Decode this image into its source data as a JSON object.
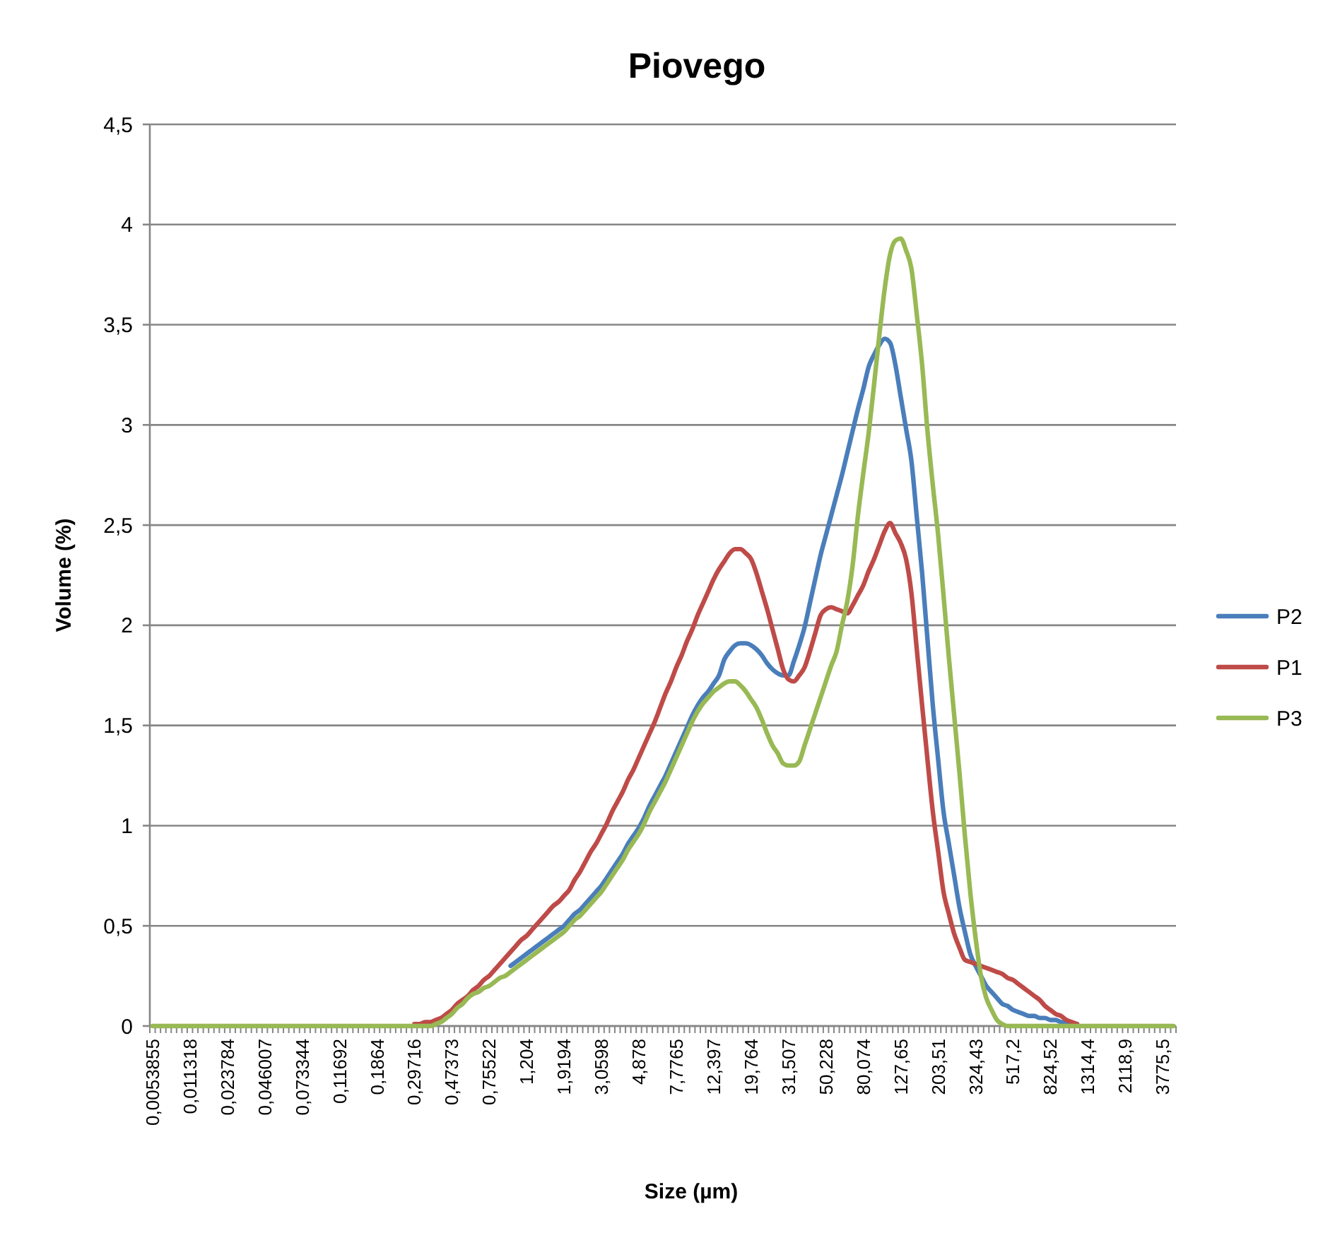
{
  "chart_data": {
    "type": "line",
    "title": "Piovego",
    "xlabel": "Size (µm)",
    "ylabel": "Volume (%)",
    "categories": [
      "0,0053855",
      null,
      null,
      null,
      null,
      null,
      null,
      "0,011318",
      null,
      null,
      null,
      null,
      null,
      null,
      "0,023784",
      null,
      null,
      null,
      null,
      null,
      null,
      "0,046007",
      null,
      null,
      null,
      null,
      null,
      null,
      "0,073344",
      null,
      null,
      null,
      null,
      null,
      null,
      "0,11692",
      null,
      null,
      null,
      null,
      null,
      null,
      "0,1864",
      null,
      null,
      null,
      null,
      null,
      null,
      "0,29716",
      null,
      null,
      null,
      null,
      null,
      null,
      "0,47373",
      null,
      null,
      null,
      null,
      null,
      null,
      "0,75522",
      null,
      null,
      null,
      null,
      null,
      null,
      "1,204",
      null,
      null,
      null,
      null,
      null,
      null,
      "1,9194",
      null,
      null,
      null,
      null,
      null,
      null,
      "3,0598",
      null,
      null,
      null,
      null,
      null,
      null,
      "4,878",
      null,
      null,
      null,
      null,
      null,
      null,
      "7,7765",
      null,
      null,
      null,
      null,
      null,
      null,
      "12,397",
      null,
      null,
      null,
      null,
      null,
      null,
      "19,764",
      null,
      null,
      null,
      null,
      null,
      null,
      "31,507",
      null,
      null,
      null,
      null,
      null,
      null,
      "50,228",
      null,
      null,
      null,
      null,
      null,
      null,
      "80,074",
      null,
      null,
      null,
      null,
      null,
      null,
      "127,65",
      null,
      null,
      null,
      null,
      null,
      null,
      "203,51",
      null,
      null,
      null,
      null,
      null,
      null,
      "324,43",
      null,
      null,
      null,
      null,
      null,
      null,
      "517,2",
      null,
      null,
      null,
      null,
      null,
      null,
      "824,52",
      null,
      null,
      null,
      null,
      null,
      null,
      "1314,4",
      null,
      null,
      null,
      null,
      null,
      null,
      "2118,9",
      null,
      null,
      null,
      null,
      null,
      null,
      "3775,5",
      null,
      null
    ],
    "series": [
      {
        "name": "P2",
        "color": "#4a7ebb",
        "values": [
          null,
          null,
          null,
          null,
          null,
          null,
          null,
          null,
          null,
          null,
          null,
          null,
          null,
          null,
          null,
          null,
          null,
          null,
          null,
          null,
          null,
          null,
          null,
          null,
          null,
          null,
          null,
          null,
          null,
          null,
          null,
          null,
          null,
          null,
          null,
          null,
          null,
          null,
          null,
          null,
          null,
          null,
          null,
          null,
          null,
          null,
          null,
          null,
          null,
          null,
          null,
          null,
          null,
          null,
          null,
          null,
          null,
          null,
          null,
          null,
          null,
          null,
          null,
          null,
          null,
          null,
          null,
          0.3,
          0.32,
          0.34,
          0.36,
          0.38,
          0.4,
          0.42,
          0.44,
          0.46,
          0.48,
          0.5,
          0.53,
          0.56,
          0.58,
          0.61,
          0.64,
          0.67,
          0.7,
          0.74,
          0.78,
          0.82,
          0.86,
          0.91,
          0.95,
          0.99,
          1.04,
          1.1,
          1.15,
          1.2,
          1.25,
          1.31,
          1.37,
          1.43,
          1.49,
          1.55,
          1.6,
          1.64,
          1.67,
          1.71,
          1.75,
          1.83,
          1.87,
          1.9,
          1.91,
          1.91,
          1.9,
          1.88,
          1.85,
          1.81,
          1.78,
          1.76,
          1.75,
          1.75,
          1.82,
          1.9,
          1.99,
          2.11,
          2.23,
          2.35,
          2.45,
          2.55,
          2.65,
          2.75,
          2.86,
          2.97,
          3.08,
          3.18,
          3.29,
          3.35,
          3.4,
          3.43,
          3.41,
          3.3,
          3.14,
          2.98,
          2.82,
          2.54,
          2.26,
          1.93,
          1.6,
          1.33,
          1.07,
          0.91,
          0.75,
          0.59,
          0.47,
          0.36,
          0.3,
          0.25,
          0.2,
          0.17,
          0.14,
          0.11,
          0.1,
          0.08,
          0.07,
          0.06,
          0.05,
          0.05,
          0.04,
          0.04,
          0.03,
          0.03,
          0.02,
          0.02,
          0.01,
          0.01,
          null,
          null,
          null,
          null,
          null,
          null,
          null,
          null,
          null,
          null,
          null,
          null,
          null,
          null,
          null,
          null,
          null,
          null
        ]
      },
      {
        "name": "P1",
        "color": "#be4b48",
        "values": [
          null,
          null,
          null,
          null,
          null,
          null,
          null,
          null,
          null,
          null,
          null,
          null,
          null,
          null,
          null,
          null,
          null,
          null,
          null,
          null,
          null,
          null,
          null,
          null,
          null,
          null,
          null,
          null,
          null,
          null,
          null,
          null,
          null,
          null,
          null,
          null,
          null,
          null,
          null,
          null,
          null,
          null,
          null,
          null,
          null,
          null,
          null,
          null,
          null,
          0.01,
          0.01,
          0.02,
          0.02,
          0.03,
          0.04,
          0.06,
          0.08,
          0.11,
          0.13,
          0.15,
          0.18,
          0.2,
          0.23,
          0.25,
          0.28,
          0.31,
          0.34,
          0.37,
          0.4,
          0.43,
          0.45,
          0.48,
          0.51,
          0.54,
          0.57,
          0.6,
          0.62,
          0.65,
          0.68,
          0.73,
          0.77,
          0.82,
          0.87,
          0.91,
          0.96,
          1.01,
          1.07,
          1.12,
          1.17,
          1.23,
          1.28,
          1.34,
          1.4,
          1.46,
          1.52,
          1.59,
          1.66,
          1.72,
          1.79,
          1.85,
          1.92,
          1.98,
          2.05,
          2.11,
          2.17,
          2.23,
          2.28,
          2.32,
          2.36,
          2.38,
          2.38,
          2.36,
          2.33,
          2.26,
          2.17,
          2.08,
          1.98,
          1.88,
          1.78,
          1.73,
          1.72,
          1.75,
          1.79,
          1.87,
          1.96,
          2.05,
          2.08,
          2.09,
          2.08,
          2.07,
          2.06,
          2.1,
          2.15,
          2.2,
          2.27,
          2.33,
          2.4,
          2.47,
          2.51,
          2.46,
          2.41,
          2.33,
          2.16,
          1.88,
          1.6,
          1.33,
          1.07,
          0.87,
          0.67,
          0.56,
          0.46,
          0.39,
          0.33,
          0.32,
          0.31,
          0.3,
          0.29,
          0.28,
          0.27,
          0.26,
          0.24,
          0.23,
          0.21,
          0.19,
          0.17,
          0.15,
          0.13,
          0.1,
          0.08,
          0.06,
          0.05,
          0.03,
          0.02,
          0.01,
          null,
          null,
          null,
          null,
          null,
          null,
          null,
          null,
          null,
          null,
          null,
          null,
          null,
          null,
          null,
          null,
          null,
          null
        ]
      },
      {
        "name": "P3",
        "color": "#98b954",
        "values": [
          0,
          0,
          0,
          0,
          0,
          0,
          0,
          0,
          0,
          0,
          0,
          0,
          0,
          0,
          0,
          0,
          0,
          0,
          0,
          0,
          0,
          0,
          0,
          0,
          0,
          0,
          0,
          0,
          0,
          0,
          0,
          0,
          0,
          0,
          0,
          0,
          0,
          0,
          0,
          0,
          0,
          0,
          0,
          0,
          0,
          0,
          0,
          0,
          0,
          0,
          0,
          0,
          0,
          0.01,
          0.02,
          0.04,
          0.06,
          0.09,
          0.11,
          0.14,
          0.16,
          0.17,
          0.19,
          0.2,
          0.22,
          0.24,
          0.25,
          0.27,
          0.29,
          0.31,
          0.33,
          0.35,
          0.37,
          0.39,
          0.41,
          0.43,
          0.45,
          0.47,
          0.5,
          0.53,
          0.55,
          0.58,
          0.61,
          0.64,
          0.67,
          0.71,
          0.75,
          0.79,
          0.83,
          0.88,
          0.92,
          0.96,
          1.01,
          1.07,
          1.12,
          1.17,
          1.22,
          1.28,
          1.34,
          1.4,
          1.46,
          1.52,
          1.57,
          1.61,
          1.64,
          1.67,
          1.69,
          1.71,
          1.72,
          1.72,
          1.7,
          1.67,
          1.63,
          1.59,
          1.53,
          1.46,
          1.4,
          1.36,
          1.31,
          1.3,
          1.3,
          1.32,
          1.4,
          1.48,
          1.56,
          1.64,
          1.72,
          1.8,
          1.87,
          2.0,
          2.12,
          2.3,
          2.55,
          2.76,
          2.96,
          3.2,
          3.45,
          3.68,
          3.85,
          3.92,
          3.93,
          3.87,
          3.78,
          3.55,
          3.3,
          2.97,
          2.7,
          2.45,
          2.15,
          1.84,
          1.55,
          1.26,
          0.95,
          0.67,
          0.44,
          0.25,
          0.14,
          0.08,
          0.03,
          0.01,
          0,
          0,
          0,
          0,
          0,
          0,
          0,
          0,
          0,
          0,
          0,
          0,
          0,
          0,
          0,
          0,
          0,
          0,
          0,
          0,
          0,
          0,
          0,
          0,
          0,
          0,
          0,
          0,
          0,
          0,
          0,
          0
        ]
      }
    ],
    "ylim": [
      0,
      4.5
    ],
    "yticks": [
      0,
      {
        "value": 0.5,
        "label": "0,5"
      },
      1,
      {
        "value": 1.5,
        "label": "1,5"
      },
      2,
      {
        "value": 2.5,
        "label": "2,5"
      },
      3,
      {
        "value": 3.5,
        "label": "3,5"
      },
      4,
      {
        "value": 4.5,
        "label": "4,5"
      }
    ],
    "grid": "y",
    "legend": "right",
    "marker": "none",
    "line_style": "solid"
  }
}
